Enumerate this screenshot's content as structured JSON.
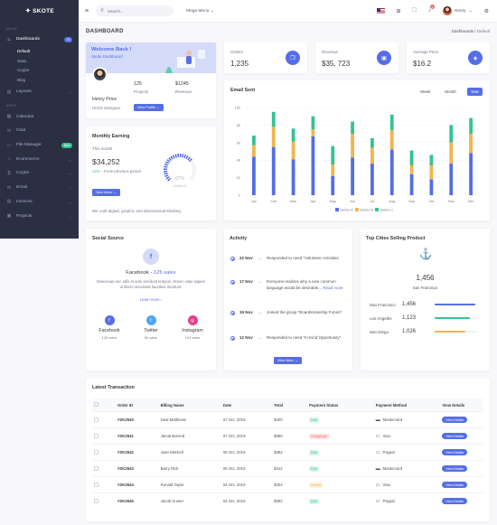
{
  "app": {
    "name": "SKOTE"
  },
  "sidebar": {
    "menu_title": "MENU",
    "apps_title": "APPS",
    "dashboards": {
      "label": "Dashboards",
      "badge": "03"
    },
    "dash_sub": [
      "Default",
      "Saas",
      "Crypto",
      "Blog"
    ],
    "layouts": "Layouts",
    "apps": [
      {
        "label": "Calendar",
        "icon": "calendar-icon",
        "glyph": "▦"
      },
      {
        "label": "Chat",
        "icon": "chat-icon",
        "glyph": "✉"
      },
      {
        "label": "File Manager",
        "icon": "folder-icon",
        "glyph": "▭",
        "badge": "New"
      },
      {
        "label": "Ecommerce",
        "icon": "store-icon",
        "glyph": "⌂",
        "chev": true
      },
      {
        "label": "Crypto",
        "icon": "bitcoin-icon",
        "glyph": "₿",
        "chev": true
      },
      {
        "label": "Email",
        "icon": "envelope-icon",
        "glyph": "✉",
        "chev": true
      },
      {
        "label": "Invoices",
        "icon": "receipt-icon",
        "glyph": "▤",
        "chev": true
      },
      {
        "label": "Projects",
        "icon": "briefcase-icon",
        "glyph": "▣",
        "chev": true
      }
    ]
  },
  "header": {
    "search_placeholder": "Search...",
    "mega_menu": "Mega Menu",
    "user": "Henry"
  },
  "page": {
    "title": "DASHBOARD",
    "crumb1": "Dashboards",
    "crumb2": "Default"
  },
  "welcome": {
    "title": "Welcome Back !",
    "subtitle": "Skote Dashboard",
    "name": "Henry Price",
    "role": "UI/UX Designer",
    "projects_value": "125",
    "projects_label": "Projects",
    "revenue_value": "$1245",
    "revenue_label": "Revenue",
    "button": "View Profile →"
  },
  "stats": [
    {
      "label": "Orders",
      "value": "1,235",
      "icon": "copy-icon",
      "glyph": "❐"
    },
    {
      "label": "Revenue",
      "value": "$35, 723",
      "icon": "archive-icon",
      "glyph": "▣"
    },
    {
      "label": "Average Price",
      "value": "$16.2",
      "icon": "tag-icon",
      "glyph": "◈"
    }
  ],
  "monthly": {
    "title": "Monthly Earning",
    "period": "This month",
    "amount": "$34,252",
    "change": "12% ↑",
    "change_text": "From previous period",
    "button": "View More →",
    "gauge_value": "67%",
    "gauge_label": "Series A",
    "gauge_fraction": 0.67,
    "footer": "We craft digital, graphic and dimensional thinking."
  },
  "email": {
    "title": "Email Sent",
    "tabs": [
      "Week",
      "Month",
      "Year"
    ],
    "active_tab": "Year"
  },
  "chart_data": {
    "type": "bar",
    "stacked": true,
    "categories": [
      "Jan",
      "Feb",
      "Mar",
      "Apr",
      "May",
      "Jun",
      "Jul",
      "Aug",
      "Sep",
      "Oct",
      "Nov",
      "Dec"
    ],
    "series": [
      {
        "name": "Series A",
        "color": "#556ee6",
        "values": [
          44,
          55,
          41,
          67,
          22,
          43,
          36,
          52,
          24,
          18,
          36,
          48
        ]
      },
      {
        "name": "Series B",
        "color": "#f1b44c",
        "values": [
          13,
          23,
          20,
          8,
          13,
          27,
          18,
          22,
          10,
          16,
          24,
          22
        ]
      },
      {
        "name": "Series C",
        "color": "#34c38f",
        "values": [
          11,
          17,
          15,
          15,
          21,
          14,
          11,
          18,
          17,
          12,
          20,
          18
        ]
      }
    ],
    "ylim": [
      0,
      100
    ],
    "yticks": [
      "100",
      "80",
      "60",
      "40",
      "20",
      "0"
    ],
    "legend": "bottom"
  },
  "social": {
    "title": "Social Source",
    "platform": "Facebook",
    "sales": "125 sales",
    "desc": "Maecenas nec odio et ante tincidunt tempus. Donec vitae sapien ut libero venenatis faucibus tincidunt.",
    "learn_more": "Learn more ›",
    "items": [
      {
        "name": "Facebook",
        "sales": "125 sales",
        "color": "#556ee6",
        "icon": "facebook-icon",
        "glyph": "f"
      },
      {
        "name": "Twitter",
        "sales": "50 sales",
        "color": "#50a5f1",
        "icon": "twitter-icon",
        "glyph": "t"
      },
      {
        "name": "Instagram",
        "sales": "104 sales",
        "color": "#e83e8c",
        "icon": "instagram-icon",
        "glyph": "◎"
      }
    ]
  },
  "activity": {
    "title": "Activity",
    "items": [
      {
        "date": "22 Nov",
        "text": "Responded to need “Volunteer Activities",
        "link": ""
      },
      {
        "date": "17 Nov",
        "text": "Everyone realizes why a new common language would be desirable...",
        "link": "Read more"
      },
      {
        "date": "15 Nov",
        "text": "Joined the group “Boardsmanship Forum”",
        "link": ""
      },
      {
        "date": "12 Nov",
        "text": "Responded to need “In-Kind Opportunity”",
        "link": ""
      }
    ],
    "button": "View More →"
  },
  "cities": {
    "title": "Top Cities Selling Product",
    "total": "1,456",
    "top_city": "San Francisco",
    "items": [
      {
        "name": "San Francisco",
        "value": "1,456",
        "pct": 0.94,
        "color": "#556ee6"
      },
      {
        "name": "Los Angeles",
        "value": "1,123",
        "pct": 0.82,
        "color": "#34c38f"
      },
      {
        "name": "San Diego",
        "value": "1,026",
        "pct": 0.7,
        "color": "#f1b44c"
      }
    ]
  },
  "transactions": {
    "title": "Latest Transaction",
    "columns": [
      "Order ID",
      "Billing Name",
      "Date",
      "Total",
      "Payment Status",
      "Payment Method",
      "View Details"
    ],
    "rows": [
      {
        "id": "#SK2540",
        "name": "Neal Matthews",
        "date": "07 Oct, 2019",
        "total": "$400",
        "status": "Paid",
        "status_type": "paid",
        "method": "Mastercard",
        "icon": "mastercard-icon"
      },
      {
        "id": "#SK2541",
        "name": "Jamal Burnett",
        "date": "07 Oct, 2019",
        "total": "$380",
        "status": "Chargeback",
        "status_type": "charge",
        "method": "Visa",
        "icon": "visa-icon"
      },
      {
        "id": "#SK2542",
        "name": "Juan Mitchell",
        "date": "06 Oct, 2019",
        "total": "$384",
        "status": "Paid",
        "status_type": "paid",
        "method": "Paypal",
        "icon": "paypal-icon"
      },
      {
        "id": "#SK2543",
        "name": "Barry Dick",
        "date": "05 Oct, 2019",
        "total": "$412",
        "status": "Paid",
        "status_type": "paid",
        "method": "Mastercard",
        "icon": "mastercard-icon"
      },
      {
        "id": "#SK2544",
        "name": "Ronald Taylor",
        "date": "04 Oct, 2019",
        "total": "$404",
        "status": "Refund",
        "status_type": "refund",
        "method": "Visa",
        "icon": "visa-icon"
      },
      {
        "id": "#SK2545",
        "name": "Jacob Hunter",
        "date": "04 Oct, 2019",
        "total": "$392",
        "status": "Paid",
        "status_type": "paid",
        "method": "Paypal",
        "icon": "paypal-icon"
      }
    ],
    "view_label": "View Details"
  }
}
